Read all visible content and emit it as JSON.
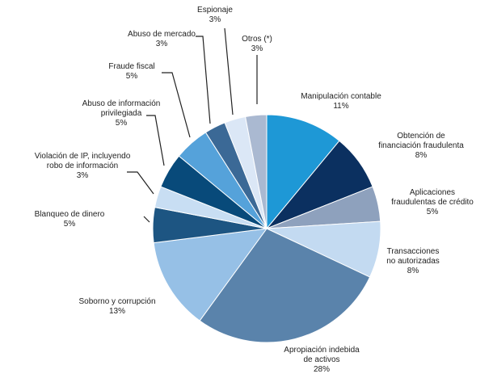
{
  "chart_data": {
    "type": "pie",
    "title": "",
    "unit": "%",
    "slices": [
      {
        "label": "Manipulación contable",
        "value": 11,
        "display": "11%",
        "color": "#1e98d6"
      },
      {
        "label": "Obtención de financiación fraudulenta",
        "value": 8,
        "display": "8%",
        "color": "#0b3060"
      },
      {
        "label": "Aplicaciones fraudulentas de crédito",
        "value": 5,
        "display": "5%",
        "color": "#8ea1bd"
      },
      {
        "label": "Transacciones no autorizadas",
        "value": 8,
        "display": "8%",
        "color": "#c3daf1"
      },
      {
        "label": "Apropiación indebida de activos",
        "value": 28,
        "display": "28%",
        "color": "#5a83ab"
      },
      {
        "label": "Soborno y corrupción",
        "value": 13,
        "display": "13%",
        "color": "#96c0e6"
      },
      {
        "label": "Blanqueo de dinero",
        "value": 5,
        "display": "5%",
        "color": "#1d5582"
      },
      {
        "label": "Violación de IP, incluyendo robo de información",
        "value": 3,
        "display": "3%",
        "color": "#c8def3"
      },
      {
        "label": "Abuso de información privilegiada",
        "value": 5,
        "display": "5%",
        "color": "#084a7a"
      },
      {
        "label": "Fraude fiscal",
        "value": 5,
        "display": "5%",
        "color": "#55a2da"
      },
      {
        "label": "Abuso de mercado",
        "value": 3,
        "display": "3%",
        "color": "#3b6996"
      },
      {
        "label": "Espionaje",
        "value": 3,
        "display": "3%",
        "color": "#dbe7f6"
      },
      {
        "label": "Otros (*)",
        "value": 3,
        "display": "3%",
        "color": "#aab9d1"
      }
    ],
    "start_angle": "12 o'clock",
    "direction": "clockwise",
    "legend": "none (direct labels)"
  },
  "labels": [
    {
      "lines": [
        "Manipulación contable"
      ],
      "pct": "11%"
    },
    {
      "lines": [
        "Obtención de",
        "financiación fraudulenta"
      ],
      "pct": "8%"
    },
    {
      "lines": [
        "Aplicaciones",
        "fraudulentas de crédito"
      ],
      "pct": "5%"
    },
    {
      "lines": [
        "Transacciones",
        "no autorizadas"
      ],
      "pct": "8%"
    },
    {
      "lines": [
        "Apropiación indebida",
        "de activos"
      ],
      "pct": "28%"
    },
    {
      "lines": [
        "Soborno y corrupción"
      ],
      "pct": "13%"
    },
    {
      "lines": [
        "Blanqueo de dinero"
      ],
      "pct": "5%"
    },
    {
      "lines": [
        "Violación de IP, incluyendo",
        "robo de información"
      ],
      "pct": "3%"
    },
    {
      "lines": [
        "Abuso de información",
        "privilegiada"
      ],
      "pct": "5%"
    },
    {
      "lines": [
        "Fraude fiscal"
      ],
      "pct": "5%"
    },
    {
      "lines": [
        "Abuso de mercado"
      ],
      "pct": "3%"
    },
    {
      "lines": [
        "Espionaje"
      ],
      "pct": "3%"
    },
    {
      "lines": [
        "Otros (*)"
      ],
      "pct": "3%"
    }
  ]
}
